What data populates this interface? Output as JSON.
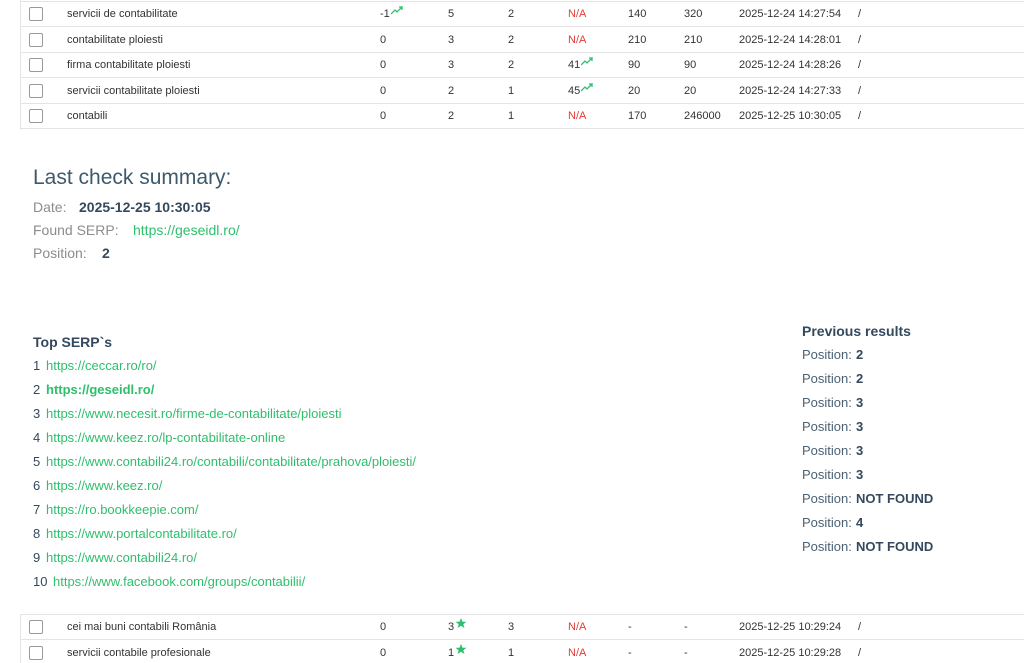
{
  "top_table": {
    "rows": [
      [
        "servicii de contabilitate",
        "-1",
        "5",
        "2",
        "N/A",
        "140",
        "320",
        "2025-12-24 14:27:54",
        "/"
      ],
      [
        "contabilitate ploiesti",
        "0",
        "3",
        "2",
        "N/A",
        "210",
        "210",
        "2025-12-24 14:28:01",
        "/"
      ],
      [
        "firma contabilitate ploiesti",
        "0",
        "3",
        "2",
        "41",
        "90",
        "90",
        "2025-12-24 14:28:26",
        "/"
      ],
      [
        "servicii contabilitate ploiesti",
        "0",
        "2",
        "1",
        "45",
        "20",
        "20",
        "2025-12-24 14:27:33",
        "/"
      ],
      [
        "contabili",
        "0",
        "2",
        "1",
        "N/A",
        "170",
        "246000",
        "2025-12-25 10:30:05",
        "/"
      ]
    ]
  },
  "summary": {
    "title": "Last check summary:",
    "date_label": "Date:",
    "date": "2025-12-25 10:30:05",
    "serp_label": "Found SERP:",
    "serp": "https://geseidl.ro/",
    "position_label": "Position:",
    "position": "2"
  },
  "top_serps": {
    "title": "Top SERP`s",
    "items": [
      {
        "rank": "1",
        "url": "https://ceccar.ro/ro/"
      },
      {
        "rank": "2",
        "url": "https://geseidl.ro/"
      },
      {
        "rank": "3",
        "url": "https://www.necesit.ro/firme-de-contabilitate/ploiesti"
      },
      {
        "rank": "4",
        "url": "https://www.keez.ro/lp-contabilitate-online"
      },
      {
        "rank": "5",
        "url": "https://www.contabili24.ro/contabili/contabilitate/prahova/ploiesti/"
      },
      {
        "rank": "6",
        "url": "https://www.keez.ro/"
      },
      {
        "rank": "7",
        "url": "https://ro.bookkeepie.com/"
      },
      {
        "rank": "8",
        "url": "https://www.portalcontabilitate.ro/"
      },
      {
        "rank": "9",
        "url": "https://www.contabili24.ro/"
      },
      {
        "rank": "10",
        "url": "https://www.facebook.com/groups/contabilii/"
      }
    ]
  },
  "previous_results": {
    "title": "Previous results",
    "items": [
      {
        "label": "Position:",
        "value": "2"
      },
      {
        "label": "Position:",
        "value": "2"
      },
      {
        "label": "Position:",
        "value": "3"
      },
      {
        "label": "Position:",
        "value": "3"
      },
      {
        "label": "Position:",
        "value": "3"
      },
      {
        "label": "Position:",
        "value": "3"
      },
      {
        "label": "Position:",
        "value": "NOT FOUND"
      },
      {
        "label": "Position:",
        "value": "4"
      },
      {
        "label": "Position:",
        "value": "NOT FOUND"
      }
    ]
  },
  "bottom_table": {
    "rows": [
      [
        "cei mai buni contabili România",
        "0",
        "3",
        "3",
        "N/A",
        "-",
        "-",
        "2025-12-25 10:29:24",
        "/"
      ],
      [
        "servicii contabile profesionale",
        "0",
        "1",
        "1",
        "N/A",
        "-",
        "-",
        "2025-12-25 10:29:28",
        "/"
      ]
    ]
  }
}
